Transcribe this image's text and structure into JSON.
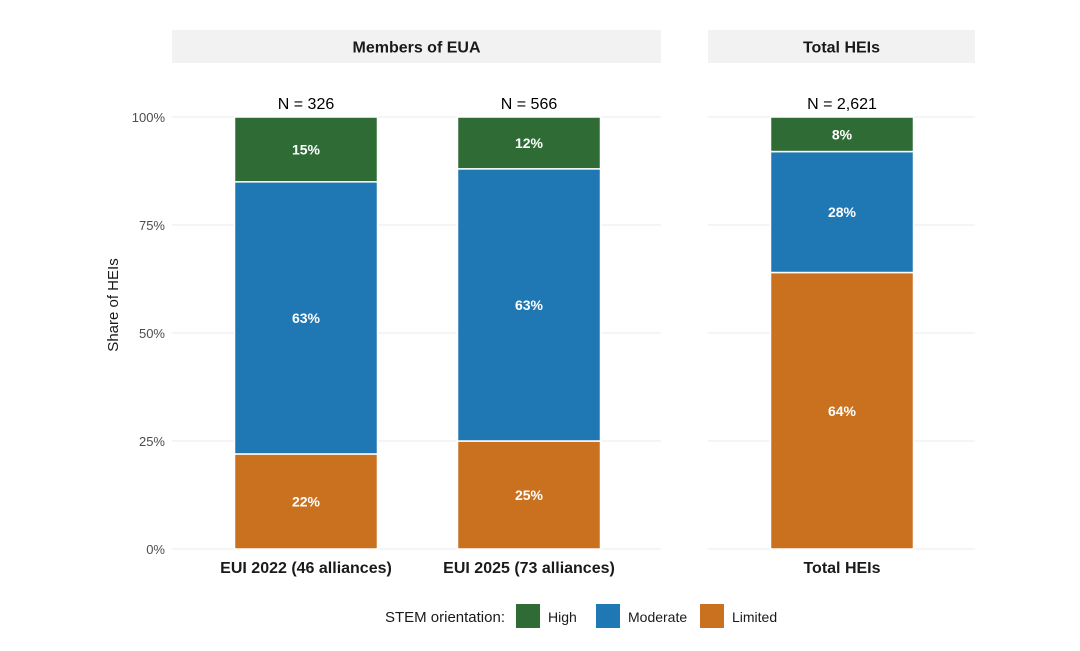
{
  "chart_data": {
    "type": "bar",
    "stacked": true,
    "ylabel": "Share of HEIs",
    "y_ticks": [
      "0%",
      "25%",
      "50%",
      "75%",
      "100%"
    ],
    "ylim": [
      0,
      100
    ],
    "legend": {
      "title": "STEM orientation:",
      "placement": "bottom",
      "items": [
        {
          "name": "High",
          "color": "#2f6b35"
        },
        {
          "name": "Moderate",
          "color": "#1f77b4"
        },
        {
          "name": "Limited",
          "color": "#c9711f"
        }
      ]
    },
    "facets": [
      {
        "title": "Members of EUA",
        "categories": [
          {
            "label": "EUI 2022 (46 alliances)",
            "n_label": "N = 326",
            "values": {
              "Limited": 22,
              "Moderate": 63,
              "High": 15
            },
            "labels": {
              "Limited": "22%",
              "Moderate": "63%",
              "High": "15%"
            }
          },
          {
            "label": "EUI 2025 (73 alliances)",
            "n_label": "N = 566",
            "values": {
              "Limited": 25,
              "Moderate": 63,
              "High": 12
            },
            "labels": {
              "Limited": "25%",
              "Moderate": "63%",
              "High": "12%"
            }
          }
        ]
      },
      {
        "title": "Total HEIs",
        "categories": [
          {
            "label": "Total HEIs",
            "n_label": "N = 2,621",
            "values": {
              "Limited": 64,
              "Moderate": 28,
              "High": 8
            },
            "labels": {
              "Limited": "64%",
              "Moderate": "28%",
              "High": "8%"
            }
          }
        ]
      }
    ]
  }
}
